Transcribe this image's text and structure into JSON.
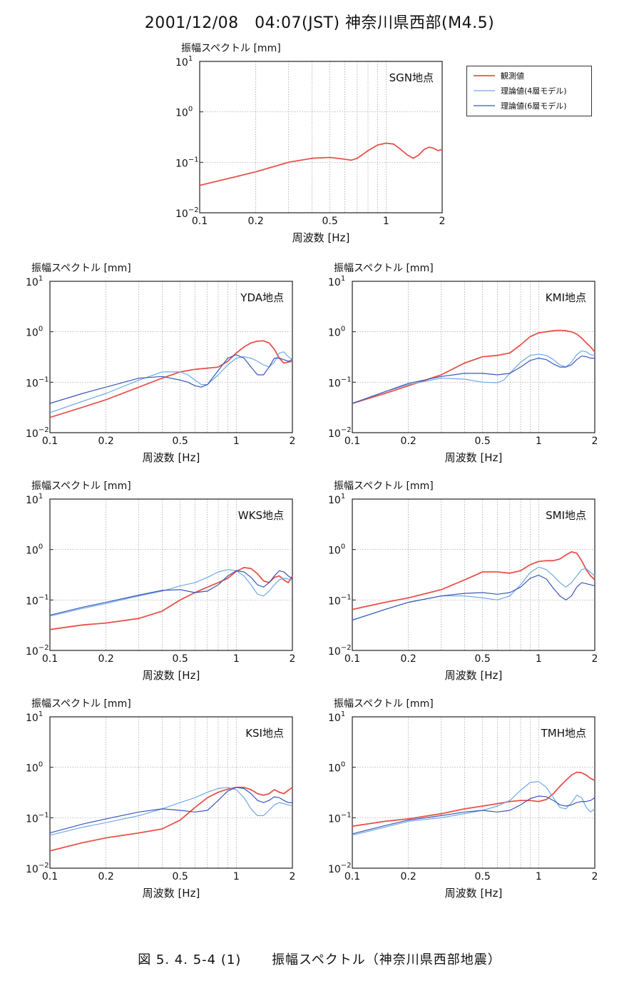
{
  "title": "2001/12/08　04:07(JST)  神奈川県西部(M4.5)",
  "caption": {
    "figure_no": "図 5. 4. 5-4 (1)",
    "text": "振幅スペクトル（神奈川県西部地震）"
  },
  "legend": [
    "観測値",
    "理論値(4層モデル)",
    "理論値(6層モデル)"
  ],
  "colors": {
    "observed": "#e8524a",
    "model4": "#6fa8e8",
    "model6": "#3a58b8",
    "grid": "#9a9a9a"
  },
  "chart_data": [
    {
      "type": "line",
      "station": "SGN地点",
      "ylabel": "振幅スペクトル [mm]",
      "xlabel": "周波数 [Hz]",
      "x_scale": "log",
      "y_scale": "log",
      "xlim": [
        0.1,
        2
      ],
      "ylim": [
        0.01,
        10
      ],
      "xticks": [
        "0.1",
        "0.2",
        "0.5",
        "1",
        "2"
      ],
      "series": [
        {
          "name": "観測値",
          "x": [
            0.1,
            0.15,
            0.2,
            0.3,
            0.4,
            0.5,
            0.6,
            0.65,
            0.7,
            0.8,
            0.9,
            1.0,
            1.1,
            1.2,
            1.3,
            1.4,
            1.5,
            1.6,
            1.7,
            1.8,
            1.9,
            2.0
          ],
          "y": [
            0.035,
            0.05,
            0.065,
            0.1,
            0.12,
            0.125,
            0.115,
            0.11,
            0.12,
            0.17,
            0.22,
            0.24,
            0.23,
            0.18,
            0.14,
            0.12,
            0.14,
            0.18,
            0.2,
            0.19,
            0.17,
            0.18
          ]
        }
      ]
    },
    {
      "type": "line",
      "station": "YDA地点",
      "ylabel": "振幅スペクトル [mm]",
      "xlabel": "周波数 [Hz]",
      "x_scale": "log",
      "y_scale": "log",
      "xlim": [
        0.1,
        2
      ],
      "ylim": [
        0.01,
        10
      ],
      "xticks": [
        "0.1",
        "0.2",
        "0.5",
        "1",
        "2"
      ],
      "series": [
        {
          "name": "観測値",
          "x": [
            0.1,
            0.15,
            0.2,
            0.3,
            0.4,
            0.5,
            0.6,
            0.7,
            0.8,
            0.9,
            1.0,
            1.1,
            1.2,
            1.3,
            1.4,
            1.5,
            1.6,
            1.7,
            1.8,
            1.9,
            2.0
          ],
          "y": [
            0.02,
            0.032,
            0.045,
            0.08,
            0.12,
            0.16,
            0.18,
            0.19,
            0.2,
            0.26,
            0.38,
            0.5,
            0.6,
            0.65,
            0.66,
            0.6,
            0.45,
            0.3,
            0.24,
            0.25,
            0.26
          ]
        },
        {
          "name": "理論値(4層モデル)",
          "x": [
            0.1,
            0.15,
            0.2,
            0.3,
            0.4,
            0.5,
            0.55,
            0.6,
            0.65,
            0.7,
            0.8,
            0.9,
            1.0,
            1.1,
            1.2,
            1.3,
            1.4,
            1.5,
            1.6,
            1.7,
            1.8,
            1.9,
            2.0
          ],
          "y": [
            0.025,
            0.042,
            0.06,
            0.11,
            0.16,
            0.16,
            0.14,
            0.11,
            0.09,
            0.09,
            0.14,
            0.22,
            0.3,
            0.32,
            0.3,
            0.26,
            0.22,
            0.2,
            0.25,
            0.38,
            0.4,
            0.32,
            0.28
          ]
        },
        {
          "name": "理論値(6層モデル)",
          "x": [
            0.1,
            0.15,
            0.2,
            0.3,
            0.4,
            0.5,
            0.55,
            0.6,
            0.65,
            0.7,
            0.8,
            0.9,
            1.0,
            1.1,
            1.2,
            1.3,
            1.4,
            1.5,
            1.6,
            1.7,
            1.8,
            1.9,
            2.0
          ],
          "y": [
            0.038,
            0.06,
            0.08,
            0.12,
            0.13,
            0.11,
            0.1,
            0.085,
            0.08,
            0.09,
            0.17,
            0.3,
            0.35,
            0.3,
            0.2,
            0.14,
            0.14,
            0.2,
            0.3,
            0.3,
            0.28,
            0.26,
            0.28
          ]
        }
      ]
    },
    {
      "type": "line",
      "station": "KMI地点",
      "ylabel": "振幅スペクトル [mm]",
      "xlabel": "周波数 [Hz]",
      "x_scale": "log",
      "y_scale": "log",
      "xlim": [
        0.1,
        2
      ],
      "ylim": [
        0.01,
        10
      ],
      "xticks": [
        "0.1",
        "0.2",
        "0.5",
        "1",
        "2"
      ],
      "series": [
        {
          "name": "観測値",
          "x": [
            0.1,
            0.15,
            0.2,
            0.3,
            0.4,
            0.5,
            0.6,
            0.7,
            0.8,
            0.9,
            1.0,
            1.1,
            1.2,
            1.3,
            1.4,
            1.5,
            1.6,
            1.7,
            1.8,
            1.9,
            2.0
          ],
          "y": [
            0.038,
            0.06,
            0.085,
            0.14,
            0.24,
            0.32,
            0.34,
            0.38,
            0.55,
            0.8,
            0.95,
            1.0,
            1.05,
            1.07,
            1.05,
            1.0,
            0.9,
            0.75,
            0.6,
            0.5,
            0.4
          ]
        },
        {
          "name": "理論値(4層モデル)",
          "x": [
            0.1,
            0.15,
            0.2,
            0.3,
            0.4,
            0.5,
            0.6,
            0.65,
            0.7,
            0.8,
            0.9,
            1.0,
            1.1,
            1.2,
            1.3,
            1.4,
            1.5,
            1.6,
            1.7,
            1.8,
            1.9,
            2.0
          ],
          "y": [
            0.038,
            0.065,
            0.09,
            0.12,
            0.115,
            0.1,
            0.098,
            0.11,
            0.15,
            0.25,
            0.34,
            0.36,
            0.34,
            0.28,
            0.22,
            0.2,
            0.25,
            0.35,
            0.42,
            0.4,
            0.35,
            0.34
          ]
        },
        {
          "name": "理論値(6層モデル)",
          "x": [
            0.1,
            0.15,
            0.2,
            0.3,
            0.4,
            0.5,
            0.6,
            0.7,
            0.8,
            0.9,
            1.0,
            1.1,
            1.2,
            1.3,
            1.4,
            1.5,
            1.6,
            1.7,
            1.8,
            1.9,
            2.0
          ],
          "y": [
            0.038,
            0.065,
            0.095,
            0.13,
            0.15,
            0.15,
            0.14,
            0.15,
            0.2,
            0.27,
            0.3,
            0.28,
            0.23,
            0.2,
            0.2,
            0.22,
            0.28,
            0.33,
            0.32,
            0.3,
            0.3
          ]
        }
      ]
    },
    {
      "type": "line",
      "station": "WKS地点",
      "ylabel": "振幅スペクトル [mm]",
      "xlabel": "周波数 [Hz]",
      "x_scale": "log",
      "y_scale": "log",
      "xlim": [
        0.1,
        2
      ],
      "ylim": [
        0.01,
        10
      ],
      "xticks": [
        "0.1",
        "0.2",
        "0.5",
        "1",
        "2"
      ],
      "series": [
        {
          "name": "観測値",
          "x": [
            0.1,
            0.15,
            0.2,
            0.3,
            0.4,
            0.5,
            0.6,
            0.7,
            0.8,
            0.9,
            1.0,
            1.1,
            1.2,
            1.3,
            1.4,
            1.5,
            1.6,
            1.7,
            1.8,
            1.9,
            2.0
          ],
          "y": [
            0.026,
            0.032,
            0.035,
            0.043,
            0.06,
            0.1,
            0.14,
            0.18,
            0.22,
            0.27,
            0.37,
            0.44,
            0.42,
            0.33,
            0.24,
            0.22,
            0.28,
            0.3,
            0.25,
            0.22,
            0.3
          ]
        },
        {
          "name": "理論値(4層モデル)",
          "x": [
            0.1,
            0.15,
            0.2,
            0.3,
            0.4,
            0.5,
            0.6,
            0.7,
            0.8,
            0.9,
            1.0,
            1.1,
            1.2,
            1.3,
            1.4,
            1.5,
            1.6,
            1.7,
            1.8,
            1.9,
            2.0
          ],
          "y": [
            0.048,
            0.068,
            0.085,
            0.12,
            0.15,
            0.19,
            0.22,
            0.28,
            0.36,
            0.4,
            0.38,
            0.3,
            0.2,
            0.13,
            0.12,
            0.15,
            0.2,
            0.25,
            0.27,
            0.26,
            0.24
          ]
        },
        {
          "name": "理論値(6層モデル)",
          "x": [
            0.1,
            0.15,
            0.2,
            0.3,
            0.4,
            0.5,
            0.6,
            0.7,
            0.8,
            0.9,
            1.0,
            1.1,
            1.2,
            1.3,
            1.4,
            1.5,
            1.6,
            1.7,
            1.8,
            1.9,
            2.0
          ],
          "y": [
            0.05,
            0.072,
            0.09,
            0.125,
            0.155,
            0.16,
            0.14,
            0.15,
            0.2,
            0.3,
            0.38,
            0.36,
            0.28,
            0.2,
            0.18,
            0.22,
            0.3,
            0.38,
            0.36,
            0.3,
            0.26
          ]
        }
      ]
    },
    {
      "type": "line",
      "station": "SMI地点",
      "ylabel": "振幅スペクトル [mm]",
      "xlabel": "周波数 [Hz]",
      "x_scale": "log",
      "y_scale": "log",
      "xlim": [
        0.1,
        2
      ],
      "ylim": [
        0.01,
        10
      ],
      "xticks": [
        "0.1",
        "0.2",
        "0.5",
        "1",
        "2"
      ],
      "series": [
        {
          "name": "観測値",
          "x": [
            0.1,
            0.15,
            0.2,
            0.3,
            0.4,
            0.5,
            0.6,
            0.7,
            0.8,
            0.9,
            1.0,
            1.1,
            1.2,
            1.3,
            1.4,
            1.5,
            1.6,
            1.7,
            1.8,
            1.9,
            2.0
          ],
          "y": [
            0.065,
            0.09,
            0.11,
            0.16,
            0.25,
            0.36,
            0.36,
            0.34,
            0.38,
            0.5,
            0.58,
            0.6,
            0.6,
            0.65,
            0.78,
            0.9,
            0.85,
            0.6,
            0.4,
            0.3,
            0.25
          ]
        },
        {
          "name": "理論値(4層モデル)",
          "x": [
            0.1,
            0.15,
            0.2,
            0.3,
            0.4,
            0.5,
            0.6,
            0.7,
            0.8,
            0.9,
            1.0,
            1.1,
            1.2,
            1.3,
            1.4,
            1.5,
            1.6,
            1.7,
            1.8,
            1.9,
            2.0
          ],
          "y": [
            0.04,
            0.065,
            0.09,
            0.12,
            0.12,
            0.11,
            0.1,
            0.12,
            0.2,
            0.35,
            0.45,
            0.4,
            0.3,
            0.22,
            0.18,
            0.22,
            0.3,
            0.4,
            0.42,
            0.35,
            0.3
          ]
        },
        {
          "name": "理論値(6層モデル)",
          "x": [
            0.1,
            0.15,
            0.2,
            0.3,
            0.4,
            0.5,
            0.6,
            0.7,
            0.8,
            0.9,
            1.0,
            1.1,
            1.2,
            1.3,
            1.4,
            1.5,
            1.6,
            1.7,
            1.8,
            1.9,
            2.0
          ],
          "y": [
            0.04,
            0.065,
            0.09,
            0.12,
            0.135,
            0.14,
            0.13,
            0.14,
            0.18,
            0.27,
            0.31,
            0.26,
            0.17,
            0.12,
            0.1,
            0.12,
            0.18,
            0.22,
            0.21,
            0.2,
            0.19
          ]
        }
      ]
    },
    {
      "type": "line",
      "station": "KSI地点",
      "ylabel": "振幅スペクトル [mm]",
      "xlabel": "周波数 [Hz]",
      "x_scale": "log",
      "y_scale": "log",
      "xlim": [
        0.1,
        2
      ],
      "ylim": [
        0.01,
        10
      ],
      "xticks": [
        "0.1",
        "0.2",
        "0.5",
        "1",
        "2"
      ],
      "series": [
        {
          "name": "観測値",
          "x": [
            0.1,
            0.15,
            0.2,
            0.3,
            0.4,
            0.5,
            0.6,
            0.7,
            0.8,
            0.9,
            1.0,
            1.1,
            1.2,
            1.3,
            1.4,
            1.5,
            1.6,
            1.7,
            1.8,
            1.9,
            2.0
          ],
          "y": [
            0.022,
            0.032,
            0.04,
            0.05,
            0.06,
            0.09,
            0.16,
            0.25,
            0.32,
            0.37,
            0.4,
            0.4,
            0.36,
            0.3,
            0.28,
            0.3,
            0.36,
            0.32,
            0.3,
            0.35,
            0.4
          ]
        },
        {
          "name": "理論値(4層モデル)",
          "x": [
            0.1,
            0.15,
            0.2,
            0.3,
            0.4,
            0.5,
            0.6,
            0.7,
            0.8,
            0.9,
            1.0,
            1.1,
            1.2,
            1.3,
            1.4,
            1.5,
            1.6,
            1.7,
            1.8,
            1.9,
            2.0
          ],
          "y": [
            0.045,
            0.065,
            0.08,
            0.11,
            0.15,
            0.2,
            0.25,
            0.32,
            0.38,
            0.4,
            0.36,
            0.25,
            0.15,
            0.11,
            0.11,
            0.14,
            0.18,
            0.2,
            0.19,
            0.18,
            0.17
          ]
        },
        {
          "name": "理論値(6層モデル)",
          "x": [
            0.1,
            0.15,
            0.2,
            0.3,
            0.4,
            0.5,
            0.6,
            0.7,
            0.8,
            0.9,
            1.0,
            1.1,
            1.2,
            1.3,
            1.4,
            1.5,
            1.6,
            1.7,
            1.8,
            1.9,
            2.0
          ],
          "y": [
            0.05,
            0.075,
            0.095,
            0.13,
            0.15,
            0.14,
            0.13,
            0.14,
            0.22,
            0.34,
            0.4,
            0.38,
            0.3,
            0.22,
            0.2,
            0.22,
            0.26,
            0.25,
            0.22,
            0.2,
            0.2
          ]
        }
      ]
    },
    {
      "type": "line",
      "station": "TMH地点",
      "ylabel": "振幅スペクトル [mm]",
      "xlabel": "周波数 [Hz]",
      "x_scale": "log",
      "y_scale": "log",
      "xlim": [
        0.1,
        2
      ],
      "ylim": [
        0.01,
        10
      ],
      "xticks": [
        "0.1",
        "0.2",
        "0.5",
        "1",
        "2"
      ],
      "series": [
        {
          "name": "観測値",
          "x": [
            0.1,
            0.15,
            0.2,
            0.3,
            0.4,
            0.5,
            0.6,
            0.7,
            0.8,
            0.9,
            1.0,
            1.1,
            1.2,
            1.3,
            1.4,
            1.5,
            1.6,
            1.7,
            1.8,
            1.9,
            2.0
          ],
          "y": [
            0.068,
            0.085,
            0.095,
            0.12,
            0.15,
            0.17,
            0.19,
            0.21,
            0.22,
            0.22,
            0.21,
            0.23,
            0.3,
            0.42,
            0.55,
            0.7,
            0.8,
            0.78,
            0.7,
            0.6,
            0.55
          ]
        },
        {
          "name": "理論値(4層モデル)",
          "x": [
            0.1,
            0.15,
            0.2,
            0.3,
            0.4,
            0.5,
            0.6,
            0.7,
            0.8,
            0.9,
            1.0,
            1.1,
            1.2,
            1.3,
            1.4,
            1.5,
            1.6,
            1.7,
            1.8,
            1.9,
            2.0
          ],
          "y": [
            0.045,
            0.065,
            0.085,
            0.1,
            0.12,
            0.14,
            0.17,
            0.22,
            0.35,
            0.5,
            0.52,
            0.4,
            0.25,
            0.16,
            0.15,
            0.2,
            0.28,
            0.25,
            0.16,
            0.13,
            0.15
          ]
        },
        {
          "name": "理論値(6層モデル)",
          "x": [
            0.1,
            0.15,
            0.2,
            0.3,
            0.4,
            0.5,
            0.6,
            0.7,
            0.8,
            0.9,
            1.0,
            1.1,
            1.2,
            1.3,
            1.4,
            1.5,
            1.6,
            1.7,
            1.8,
            1.9,
            2.0
          ],
          "y": [
            0.048,
            0.07,
            0.09,
            0.11,
            0.13,
            0.14,
            0.13,
            0.14,
            0.18,
            0.24,
            0.27,
            0.26,
            0.22,
            0.18,
            0.17,
            0.18,
            0.2,
            0.21,
            0.21,
            0.22,
            0.25
          ]
        }
      ]
    }
  ]
}
